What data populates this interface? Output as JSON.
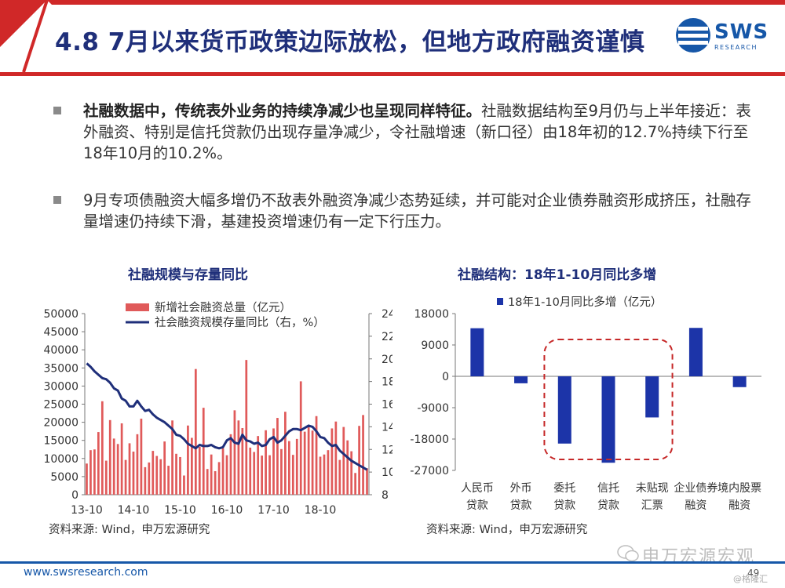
{
  "header": {
    "title": "4.8 7月以来货币政策边际放松，但地方政府融资谨慎",
    "logo_text": "SWS",
    "logo_sub": "RESEARCH"
  },
  "bullets": [
    {
      "bold": "社融数据中，传统表外业务的持续净减少也呈现同样特征。",
      "text": "社融数据结构至9月仍与上半年接近：表外融资、特别是信托贷款仍出现存量净减少，令社融增速（新口径）由18年初的12.7%持续下行至18年10月的10.2%。"
    },
    {
      "bold": "",
      "text": "9月专项债融资大幅多增仍不敌表外融资净减少态势延续，并可能对企业债券融资形成挤压，社融存量增速仍持续下滑，基建投资增速仍有一定下行压力。"
    }
  ],
  "chart_data": [
    {
      "type": "bar+line",
      "title": "社融规模与存量同比",
      "legend": [
        "新增社会融资总量（亿元）",
        "社会融资规模存量同比（右，%）"
      ],
      "left_axis": {
        "ylim": [
          0,
          50000
        ],
        "ticks": [
          "50000",
          "45000",
          "40000",
          "35000",
          "30000",
          "25000",
          "20000",
          "15000",
          "10000",
          "5000",
          "0"
        ]
      },
      "right_axis": {
        "ylim": [
          8,
          24
        ],
        "ticks": [
          "24",
          "22",
          "20",
          "18",
          "16",
          "14",
          "12",
          "10",
          "8"
        ]
      },
      "x_ticks": [
        "13-10",
        "14-10",
        "15-10",
        "16-10",
        "17-10",
        "18-10"
      ],
      "colors": {
        "bars": "#e05a5a",
        "line": "#1f2f7a"
      },
      "series": [
        {
          "name": "新增社会融资总量（亿元）",
          "values": [
            8600,
            12300,
            12500,
            17300,
            25800,
            9400,
            20600,
            15500,
            14000,
            19700,
            9600,
            14200,
            11900,
            16700,
            21000,
            7600,
            8900,
            12100,
            10700,
            9800,
            14700,
            8000,
            20500,
            11300,
            10400,
            5300,
            19100,
            15700,
            34700,
            13200,
            24000,
            7100,
            11100,
            6500,
            9000,
            12800,
            10900,
            16700,
            23300,
            20500,
            18400,
            37200,
            13000,
            11800,
            16200,
            10800,
            17800,
            10900,
            18300,
            21200,
            12600,
            22900,
            14800,
            11000,
            15400,
            31300,
            17400,
            18600,
            17700,
            21700,
            10500,
            11100,
            12300,
            18300,
            20200,
            9600,
            18700,
            15000,
            12000,
            6000,
            19000,
            22000,
            7300
          ]
        },
        {
          "name": "社会融资规模存量同比（右，%）",
          "values": [
            19.6,
            19.3,
            18.9,
            18.6,
            18.3,
            18.2,
            17.9,
            17.4,
            17.2,
            16.5,
            16.3,
            15.8,
            15.8,
            16.3,
            15.8,
            15.4,
            15.5,
            15.1,
            14.8,
            14.6,
            14.4,
            14.1,
            13.8,
            13.3,
            13.2,
            12.9,
            12.5,
            12.3,
            12.1,
            12.4,
            12.3,
            12.3,
            12.4,
            12.2,
            12.1,
            12.2,
            12.8,
            13.0,
            12.6,
            12.5,
            13.3,
            12.8,
            12.7,
            12.5,
            12.6,
            12.3,
            12.4,
            12.9,
            13.1,
            12.6,
            12.8,
            13.2,
            13.6,
            13.8,
            13.8,
            13.7,
            13.9,
            14.1,
            14.0,
            13.6,
            13.1,
            13.0,
            12.6,
            12.3,
            12.4,
            11.9,
            11.6,
            11.3,
            11.0,
            10.8,
            10.6,
            10.4,
            10.2
          ]
        }
      ]
    },
    {
      "type": "bar",
      "title": "社融结构：18年1-10月同比多增",
      "legend": [
        "18年1-10月同比多增（亿元）"
      ],
      "ylim": [
        -27000,
        18000
      ],
      "y_ticks": [
        "18000",
        "9000",
        "0",
        "-9000",
        "-18000",
        "-27000"
      ],
      "categories": [
        [
          "人民币",
          "贷款"
        ],
        [
          "外币",
          "贷款"
        ],
        [
          "委托",
          "贷款"
        ],
        [
          "信托",
          "贷款"
        ],
        [
          "未贴现",
          "汇票"
        ],
        [
          "企业债券",
          "融资"
        ],
        [
          "境内股票",
          "融资"
        ]
      ],
      "values": [
        13800,
        -2000,
        -19300,
        -24800,
        -11800,
        13900,
        -3100
      ],
      "colors": {
        "bars": "#1c34a8",
        "highlight": "#c62828"
      }
    }
  ],
  "sources": [
    "资料来源: Wind，申万宏源研究",
    "资料来源: Wind，申万宏源研究"
  ],
  "footer": {
    "url": "www.swsresearch.com",
    "page": "49",
    "watermark": "申万宏源宏观",
    "watermark_sub": "@格隆汇"
  }
}
